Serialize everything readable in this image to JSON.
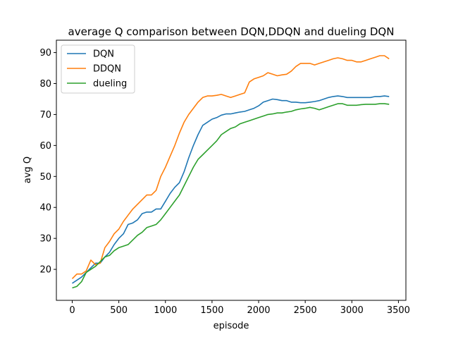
{
  "chart_data": {
    "type": "line",
    "title": "average Q comparison between DQN,DDQN and dueling DQN",
    "xlabel": "episode",
    "ylabel": "avg Q",
    "xlim": [
      -170,
      3580
    ],
    "ylim": [
      10,
      94
    ],
    "xticks": [
      0,
      500,
      1000,
      1500,
      2000,
      2500,
      3000,
      3500
    ],
    "yticks": [
      20,
      30,
      40,
      50,
      60,
      70,
      80,
      90
    ],
    "grid": false,
    "legend_position": "top-left",
    "series": [
      {
        "name": "DQN",
        "color": "#1f77b4",
        "x": [
          0,
          50,
          100,
          150,
          200,
          250,
          300,
          350,
          400,
          450,
          500,
          550,
          600,
          650,
          700,
          750,
          800,
          850,
          900,
          950,
          1000,
          1050,
          1100,
          1150,
          1200,
          1250,
          1300,
          1350,
          1400,
          1450,
          1500,
          1550,
          1600,
          1650,
          1700,
          1750,
          1800,
          1850,
          1900,
          1950,
          2000,
          2050,
          2100,
          2150,
          2200,
          2250,
          2300,
          2350,
          2400,
          2450,
          2500,
          2550,
          2600,
          2650,
          2700,
          2750,
          2800,
          2850,
          2900,
          2950,
          3000,
          3050,
          3100,
          3150,
          3200,
          3250,
          3300,
          3350,
          3400
        ],
        "y": [
          15.5,
          16.5,
          17.5,
          19,
          20.5,
          22,
          22,
          24,
          25.5,
          28,
          30,
          31.5,
          34.5,
          35,
          36,
          38,
          38.5,
          38.5,
          39.5,
          39.5,
          42,
          44.5,
          46.5,
          48,
          51.5,
          56,
          60,
          63.5,
          66.5,
          67.5,
          68.5,
          69,
          69.8,
          70.2,
          70.2,
          70.5,
          70.8,
          71,
          71.5,
          72,
          72.8,
          74,
          74.5,
          75,
          74.8,
          74.5,
          74.5,
          74,
          74,
          73.8,
          73.8,
          74,
          74.2,
          74.5,
          75,
          75.5,
          75.8,
          76,
          75.8,
          75.5,
          75.5,
          75.5,
          75.5,
          75.5,
          75.5,
          75.8,
          75.8,
          76,
          75.8
        ]
      },
      {
        "name": "DDQN",
        "color": "#ff7f0e",
        "x": [
          0,
          50,
          100,
          150,
          200,
          250,
          300,
          350,
          400,
          450,
          500,
          550,
          600,
          650,
          700,
          750,
          800,
          850,
          900,
          950,
          1000,
          1050,
          1100,
          1150,
          1200,
          1250,
          1300,
          1350,
          1400,
          1450,
          1500,
          1550,
          1600,
          1650,
          1700,
          1750,
          1800,
          1850,
          1900,
          1950,
          2000,
          2050,
          2100,
          2150,
          2200,
          2250,
          2300,
          2350,
          2400,
          2450,
          2500,
          2550,
          2600,
          2650,
          2700,
          2750,
          2800,
          2850,
          2900,
          2950,
          3000,
          3050,
          3100,
          3150,
          3200,
          3250,
          3300,
          3350,
          3400
        ],
        "y": [
          17,
          18.5,
          18.5,
          19.5,
          23,
          21.5,
          22,
          27,
          29,
          31.5,
          33,
          35.5,
          37.5,
          39.5,
          41,
          42.5,
          44,
          44,
          45.5,
          50,
          53,
          56.5,
          60,
          64,
          67.5,
          70,
          72,
          74,
          75.5,
          76,
          76,
          76.2,
          76.5,
          76,
          75.5,
          76,
          76.5,
          77,
          80.5,
          81.5,
          82,
          82.5,
          83.5,
          83,
          82.5,
          82.8,
          83,
          84,
          85.5,
          86.5,
          86.5,
          86.5,
          86,
          86.5,
          87,
          87.5,
          88,
          88.3,
          88,
          87.5,
          87.5,
          87,
          87,
          87.5,
          88,
          88.5,
          89,
          89,
          88
        ]
      },
      {
        "name": "dueling",
        "color": "#2ca02c",
        "x": [
          0,
          50,
          100,
          150,
          200,
          250,
          300,
          350,
          400,
          450,
          500,
          550,
          600,
          650,
          700,
          750,
          800,
          850,
          900,
          950,
          1000,
          1050,
          1100,
          1150,
          1200,
          1250,
          1300,
          1350,
          1400,
          1450,
          1500,
          1550,
          1600,
          1650,
          1700,
          1750,
          1800,
          1850,
          1900,
          1950,
          2000,
          2050,
          2100,
          2150,
          2200,
          2250,
          2300,
          2350,
          2400,
          2450,
          2500,
          2550,
          2600,
          2650,
          2700,
          2750,
          2800,
          2850,
          2900,
          2950,
          3000,
          3050,
          3100,
          3150,
          3200,
          3250,
          3300,
          3350,
          3400
        ],
        "y": [
          14,
          14.5,
          16,
          19,
          20,
          21,
          22.5,
          24,
          24.5,
          26,
          27,
          27.5,
          28,
          29.5,
          31,
          32,
          33.5,
          34,
          34.5,
          36,
          38,
          40,
          42,
          44,
          47,
          50,
          53,
          55.5,
          57,
          58.5,
          60,
          61.5,
          63.5,
          64.5,
          65.5,
          66,
          67,
          67.5,
          68,
          68.5,
          69,
          69.5,
          70,
          70.2,
          70.5,
          70.5,
          70.8,
          71,
          71.5,
          71.8,
          72,
          72.3,
          72,
          71.5,
          72,
          72.5,
          73,
          73.5,
          73.5,
          73,
          73,
          73,
          73.2,
          73.3,
          73.3,
          73.3,
          73.5,
          73.5,
          73.3
        ]
      }
    ]
  }
}
